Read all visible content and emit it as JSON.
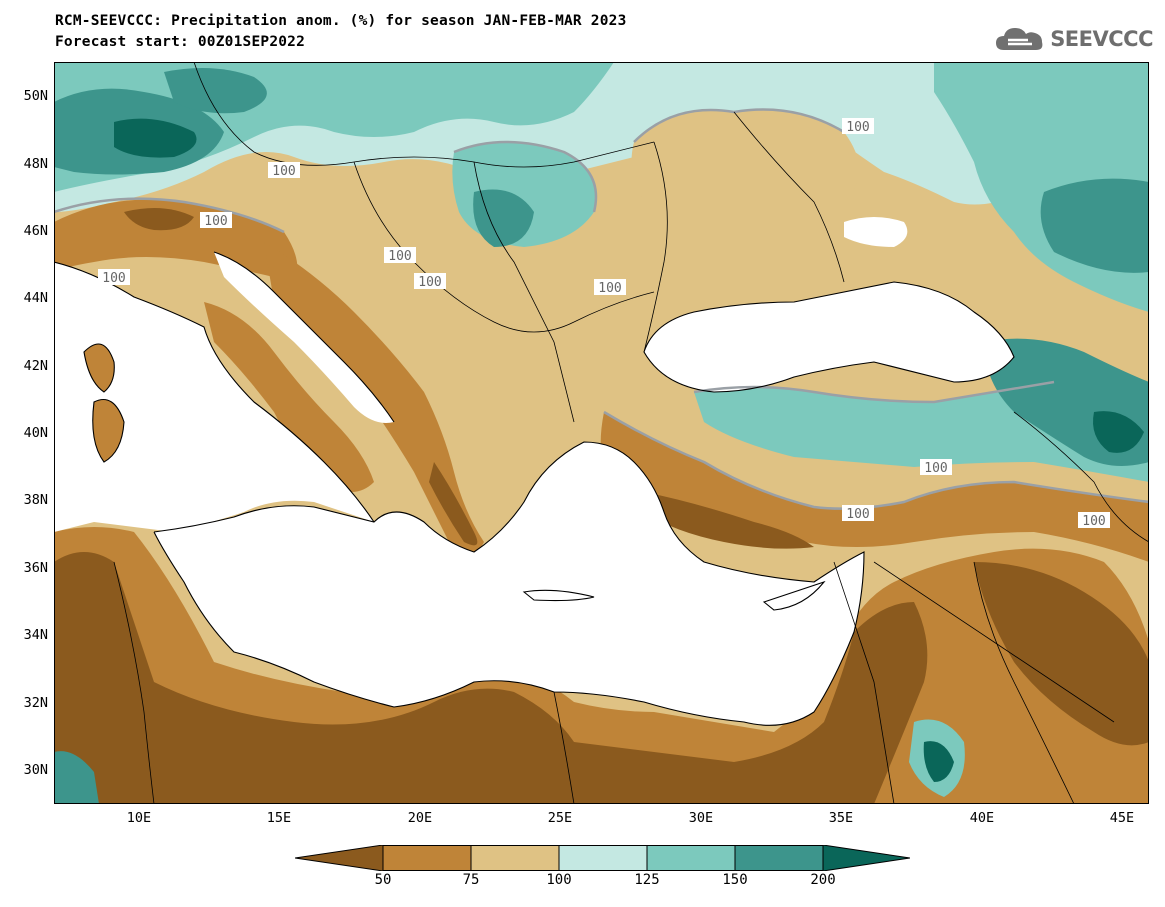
{
  "title": "RCM-SEEVCCC: Precipitation anom. (%) for season JAN-FEB-MAR 2023",
  "subtitle": "Forecast start: 00Z01SEP2022",
  "logo_text": "SEEVCCC",
  "lat_labels": [
    "50N",
    "48N",
    "46N",
    "44N",
    "42N",
    "40N",
    "38N",
    "36N",
    "34N",
    "32N",
    "30N"
  ],
  "lon_labels": [
    "10E",
    "15E",
    "20E",
    "25E",
    "30E",
    "35E",
    "40E",
    "45E"
  ],
  "contour_labels": [
    "100",
    "100",
    "100",
    "100",
    "100",
    "100",
    "100",
    "100",
    "100",
    "100"
  ],
  "colorbar": {
    "labels": [
      "50",
      "75",
      "100",
      "125",
      "150",
      "200"
    ],
    "colors": [
      "#8b5a1e",
      "#bf8438",
      "#dfc284",
      "#c4e8e2",
      "#7cc9bd",
      "#3d958c",
      "#0a6659"
    ]
  },
  "colors": {
    "sea": "#ffffff",
    "contour_100": "#9aa0a6",
    "border": "#000000"
  }
}
